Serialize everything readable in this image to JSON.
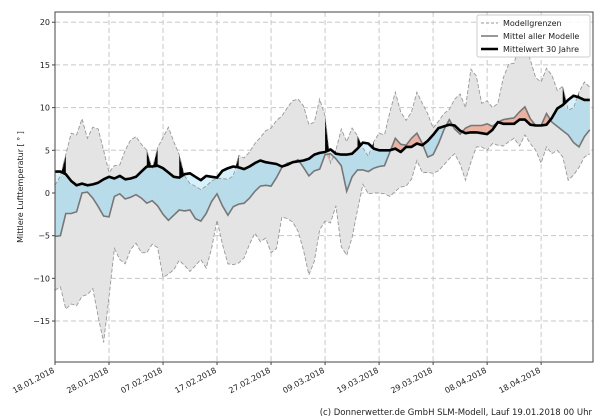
{
  "chart_data": {
    "type": "area",
    "title": "",
    "xlabel": "",
    "ylabel": "Mittlere Lufttemperatur [ ° ]",
    "ylim": [
      -19.8,
      21.2
    ],
    "xlim": [
      "18.01.2018",
      "27.04.2018"
    ],
    "grid": true,
    "legend_position": "top-right",
    "x_ticks": [
      "18.01.2018",
      "28.01.2018",
      "07.02.2018",
      "17.02.2018",
      "27.02.2018",
      "09.03.2018",
      "19.03.2018",
      "29.03.2018",
      "08.04.2018",
      "18.04.2018"
    ],
    "y_ticks": [
      -15,
      -10,
      -5,
      0,
      5,
      10,
      15,
      20
    ],
    "legend": [
      {
        "label": "Modellgrenzen",
        "style": "dashed",
        "color": "#999999"
      },
      {
        "label": "Mittel aller Modelle",
        "style": "solid",
        "color": "#777777"
      },
      {
        "label": "Mittelwert 30 Jahre",
        "style": "solid-bold",
        "color": "#000000"
      }
    ],
    "colors": {
      "band": "#e4e4e4",
      "below_normal": "#b9dcea",
      "above_normal": "#ebb2a2",
      "upper_below_normal": "#d5f2fc",
      "grid": "#c8c8c8"
    },
    "dates": [
      "18.01.2018",
      "19.01.2018",
      "20.01.2018",
      "21.01.2018",
      "22.01.2018",
      "23.01.2018",
      "24.01.2018",
      "25.01.2018",
      "26.01.2018",
      "27.01.2018",
      "28.01.2018",
      "29.01.2018",
      "30.01.2018",
      "31.01.2018",
      "01.02.2018",
      "02.02.2018",
      "03.02.2018",
      "04.02.2018",
      "05.02.2018",
      "06.02.2018",
      "07.02.2018",
      "08.02.2018",
      "09.02.2018",
      "10.02.2018",
      "11.02.2018",
      "12.02.2018",
      "13.02.2018",
      "14.02.2018",
      "15.02.2018",
      "16.02.2018",
      "17.02.2018",
      "18.02.2018",
      "19.02.2018",
      "20.02.2018",
      "21.02.2018",
      "22.02.2018",
      "23.02.2018",
      "24.02.2018",
      "25.02.2018",
      "26.02.2018",
      "27.02.2018",
      "28.02.2018",
      "01.03.2018",
      "02.03.2018",
      "03.03.2018",
      "04.03.2018",
      "05.03.2018",
      "06.03.2018",
      "07.03.2018",
      "08.03.2018",
      "09.03.2018",
      "10.03.2018",
      "11.03.2018",
      "12.03.2018",
      "13.03.2018",
      "14.03.2018",
      "15.03.2018",
      "16.03.2018",
      "17.03.2018",
      "18.03.2018",
      "19.03.2018",
      "20.03.2018",
      "21.03.2018",
      "22.03.2018",
      "23.03.2018",
      "24.03.2018",
      "25.03.2018",
      "26.03.2018",
      "27.03.2018",
      "28.03.2018",
      "29.03.2018",
      "30.03.2018",
      "31.03.2018",
      "01.04.2018",
      "02.04.2018",
      "03.04.2018",
      "04.04.2018",
      "05.04.2018",
      "06.04.2018",
      "07.04.2018",
      "08.04.2018",
      "09.04.2018",
      "10.04.2018",
      "11.04.2018",
      "12.04.2018",
      "13.04.2018",
      "14.04.2018",
      "15.04.2018",
      "16.04.2018",
      "17.04.2018",
      "18.04.2018",
      "19.04.2018",
      "20.04.2018",
      "21.04.2018",
      "22.04.2018",
      "23.04.2018",
      "24.04.2018",
      "25.04.2018",
      "26.04.2018",
      "27.04.2018"
    ],
    "series": [
      {
        "name": "Modellgrenzen (oben)",
        "values": [
          0.9,
          2.0,
          4.5,
          7.0,
          6.8,
          8.7,
          6.4,
          7.7,
          7.5,
          5.0,
          2.4,
          3.2,
          3.3,
          5.0,
          6.2,
          6.6,
          5.7,
          5.0,
          2.8,
          5.3,
          6.5,
          7.7,
          6.0,
          4.5,
          2.0,
          1.1,
          0.8,
          0.4,
          0.8,
          1.4,
          1.7,
          1.7,
          1.6,
          2.0,
          4.4,
          4.1,
          4.8,
          5.8,
          6.5,
          7.3,
          7.6,
          8.5,
          9.0,
          10.0,
          10.8,
          11.0,
          10.2,
          8.0,
          8.3,
          11.0,
          9.0,
          3.5,
          5.0,
          7.5,
          6.0,
          7.6,
          6.7,
          5.3,
          4.3,
          6.0,
          7.0,
          6.8,
          9.5,
          11.8,
          9.5,
          8.5,
          9.5,
          11.8,
          10.5,
          9.3,
          7.6,
          8.4,
          9.3,
          9.8,
          11.0,
          11.6,
          10.0,
          14.5,
          13.7,
          10.5,
          10.8,
          10.0,
          10.5,
          13.5,
          15.1,
          15.2,
          17.5,
          17.5,
          15.6,
          13.5,
          13.0,
          14.6,
          13.8,
          12.0,
          12.5,
          9.7,
          10.0,
          11.8,
          13.0,
          12.4
        ]
      },
      {
        "name": "Modellgrenzen (unten)",
        "values": [
          -11.4,
          -11.0,
          -13.6,
          -13.0,
          -13.2,
          -12.1,
          -11.9,
          -11.2,
          -14.5,
          -17.5,
          -12.2,
          -6.5,
          -7.8,
          -8.3,
          -6.6,
          -5.9,
          -7.0,
          -7.0,
          -6.0,
          -6.4,
          -9.9,
          -9.5,
          -9.0,
          -7.9,
          -8.5,
          -9.2,
          -8.5,
          -7.8,
          -8.8,
          -6.5,
          -3.2,
          -6.0,
          -8.3,
          -8.4,
          -8.2,
          -7.6,
          -6.0,
          -4.7,
          -5.7,
          -5.3,
          -7.0,
          -6.5,
          -2.8,
          -3.0,
          -3.4,
          -4.5,
          -6.7,
          -9.6,
          -8.0,
          -4.3,
          -3.3,
          -3.5,
          -1.5,
          -6.3,
          -7.3,
          -5.2,
          -2.0,
          1.0,
          -0.1,
          0.0,
          0.0,
          -0.1,
          -0.4,
          0.2,
          0.7,
          0.8,
          1.6,
          3.8,
          2.4,
          2.4,
          2.3,
          2.6,
          3.3,
          4.0,
          4.6,
          3.4,
          1.5,
          3.6,
          5.4,
          5.4,
          5.0,
          5.8,
          5.6,
          5.5,
          6.0,
          6.4,
          5.5,
          6.8,
          5.8,
          5.0,
          3.5,
          5.4,
          4.6,
          5.0,
          4.2,
          1.5,
          2.1,
          3.0,
          4.2,
          4.6
        ]
      },
      {
        "name": "Mittel aller Modelle",
        "values": [
          -5.1,
          -5.0,
          -2.4,
          -2.4,
          -2.2,
          0.0,
          0.1,
          -0.6,
          -1.6,
          -2.7,
          -2.8,
          -0.4,
          -0.1,
          -0.7,
          -0.5,
          -0.2,
          -0.6,
          -1.2,
          -0.9,
          -1.5,
          -2.5,
          -3.2,
          -2.6,
          -2.0,
          -2.1,
          -2.0,
          -3.0,
          -3.3,
          -2.4,
          -1.0,
          -0.1,
          -1.5,
          -2.6,
          -1.6,
          -1.3,
          -1.2,
          -0.6,
          0.2,
          0.8,
          0.9,
          0.8,
          1.8,
          3.0,
          3.5,
          3.6,
          3.9,
          3.0,
          2.0,
          2.6,
          2.8,
          4.5,
          4.6,
          4.0,
          3.2,
          0.2,
          1.9,
          2.7,
          2.7,
          2.5,
          2.9,
          3.1,
          3.2,
          4.8,
          6.4,
          5.7,
          5.6,
          6.4,
          7.0,
          5.8,
          4.2,
          4.5,
          5.8,
          7.4,
          8.6,
          7.5,
          6.9,
          7.6,
          7.9,
          7.9,
          7.9,
          8.1,
          7.8,
          8.3,
          8.6,
          8.7,
          8.8,
          9.5,
          10.1,
          8.7,
          7.9,
          7.9,
          9.3,
          8.3,
          7.8,
          7.3,
          6.8,
          5.9,
          5.4,
          6.6,
          7.4
        ]
      },
      {
        "name": "Mittelwert 30 Jahre",
        "values": [
          2.5,
          2.5,
          2.2,
          1.4,
          0.9,
          1.1,
          0.9,
          1.0,
          1.2,
          1.6,
          1.9,
          1.7,
          2.0,
          1.6,
          1.7,
          1.9,
          2.5,
          3.1,
          3.1,
          3.2,
          2.9,
          2.4,
          1.9,
          1.8,
          2.2,
          2.3,
          1.9,
          1.5,
          2.0,
          1.9,
          1.8,
          2.6,
          2.9,
          3.1,
          3.0,
          2.8,
          3.1,
          3.5,
          3.8,
          3.6,
          3.5,
          3.4,
          3.1,
          3.3,
          3.6,
          3.7,
          3.8,
          4.0,
          4.5,
          4.7,
          4.8,
          5.1,
          4.6,
          4.5,
          4.5,
          4.6,
          5.2,
          5.9,
          5.8,
          5.2,
          5.0,
          5.0,
          5.0,
          5.2,
          4.8,
          5.4,
          5.4,
          5.8,
          5.6,
          6.1,
          6.8,
          7.6,
          7.8,
          8.0,
          7.9,
          7.3,
          7.0,
          7.1,
          7.1,
          7.0,
          6.9,
          7.4,
          8.3,
          8.1,
          8.1,
          8.1,
          8.6,
          8.6,
          8.0,
          7.9,
          7.9,
          8.0,
          8.8,
          9.9,
          10.3,
          10.9,
          11.4,
          11.2,
          10.9,
          10.9
        ]
      }
    ]
  },
  "footer": "(c) Donnerwetter.de GmbH SLM-Modell, Lauf 19.01.2018 00 Uhr"
}
